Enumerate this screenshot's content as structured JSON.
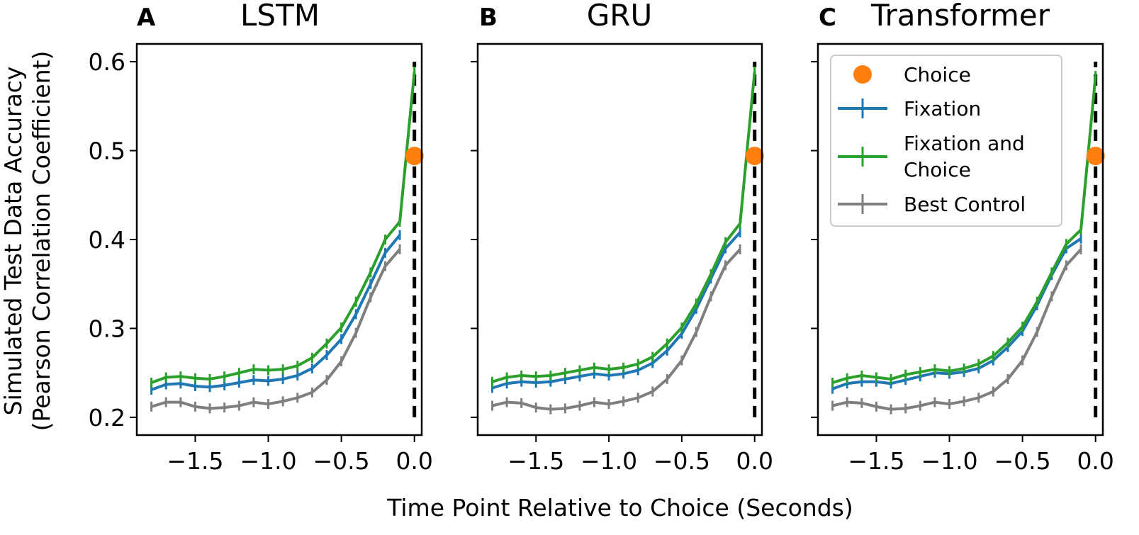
{
  "figure": {
    "xlabel": "Time Point Relative to Choice (Seconds)",
    "ylabel_line1": "Simulated Test Data Accuracy",
    "ylabel_line2": "(Pearson Correlation Coefficient)"
  },
  "colors": {
    "choice": "#ff7f0e",
    "fixation": "#1f77b4",
    "fixation_and_choice": "#2ca02c",
    "best_control": "#7f7f7f",
    "choice_line": "#000000"
  },
  "legend": {
    "choice": "Choice",
    "fixation": "Fixation",
    "fixation_and_choice_line1": "Fixation and",
    "fixation_and_choice_line2": "Choice",
    "best_control": "Best Control"
  },
  "chart_data": [
    {
      "type": "line",
      "panel": "A",
      "title": "LSTM",
      "xlim": [
        -1.9,
        0.05
      ],
      "ylim": [
        0.18,
        0.62
      ],
      "xticks": [
        -1.5,
        -1.0,
        -0.5,
        0.0
      ],
      "xtick_labels": [
        "−1.5",
        "−1.0",
        "−0.5",
        "0.0"
      ],
      "yticks": [
        0.2,
        0.3,
        0.4,
        0.5,
        0.6
      ],
      "ytick_labels": [
        "0.2",
        "0.3",
        "0.4",
        "0.5",
        "0.6"
      ],
      "x": [
        -1.8,
        -1.7,
        -1.6,
        -1.5,
        -1.4,
        -1.3,
        -1.2,
        -1.1,
        -1.0,
        -0.9,
        -0.8,
        -0.7,
        -0.6,
        -0.5,
        -0.4,
        -0.3,
        -0.2,
        -0.1,
        0.0
      ],
      "choice_point": {
        "x": 0.0,
        "y": 0.494
      },
      "series": [
        {
          "name": "Fixation",
          "key": "fixation",
          "values": [
            0.231,
            0.237,
            0.238,
            0.235,
            0.234,
            0.236,
            0.239,
            0.242,
            0.241,
            0.243,
            0.247,
            0.255,
            0.27,
            0.288,
            0.316,
            0.35,
            0.385,
            0.405,
            null
          ]
        },
        {
          "name": "Fixation and Choice",
          "key": "fixation_and_choice",
          "values": [
            0.239,
            0.245,
            0.246,
            0.244,
            0.243,
            0.246,
            0.25,
            0.254,
            0.253,
            0.254,
            0.258,
            0.267,
            0.283,
            0.301,
            0.33,
            0.363,
            0.4,
            0.42,
            0.589
          ]
        },
        {
          "name": "Best Control",
          "key": "best_control",
          "values": [
            0.212,
            0.217,
            0.217,
            0.212,
            0.21,
            0.211,
            0.213,
            0.217,
            0.215,
            0.218,
            0.222,
            0.228,
            0.242,
            0.263,
            0.295,
            0.335,
            0.37,
            0.389,
            null
          ]
        }
      ]
    },
    {
      "type": "line",
      "panel": "B",
      "title": "GRU",
      "xlim": [
        -1.9,
        0.05
      ],
      "ylim": [
        0.18,
        0.62
      ],
      "xticks": [
        -1.5,
        -1.0,
        -0.5,
        0.0
      ],
      "xtick_labels": [
        "−1.5",
        "−1.0",
        "−0.5",
        "0.0"
      ],
      "yticks": [
        0.2,
        0.3,
        0.4,
        0.5,
        0.6
      ],
      "ytick_labels": [
        "",
        "",
        "",
        "",
        ""
      ],
      "x": [
        -1.8,
        -1.7,
        -1.6,
        -1.5,
        -1.4,
        -1.3,
        -1.2,
        -1.1,
        -1.0,
        -0.9,
        -0.8,
        -0.7,
        -0.6,
        -0.5,
        -0.4,
        -0.3,
        -0.2,
        -0.1,
        0.0
      ],
      "choice_point": {
        "x": 0.0,
        "y": 0.494
      },
      "series": [
        {
          "name": "Fixation",
          "key": "fixation",
          "values": [
            0.233,
            0.238,
            0.24,
            0.239,
            0.24,
            0.243,
            0.246,
            0.249,
            0.247,
            0.249,
            0.253,
            0.261,
            0.275,
            0.294,
            0.322,
            0.356,
            0.39,
            0.408,
            null
          ]
        },
        {
          "name": "Fixation and Choice",
          "key": "fixation_and_choice",
          "values": [
            0.24,
            0.245,
            0.247,
            0.246,
            0.247,
            0.25,
            0.253,
            0.256,
            0.254,
            0.256,
            0.26,
            0.268,
            0.283,
            0.301,
            0.328,
            0.361,
            0.397,
            0.418,
            0.589
          ]
        },
        {
          "name": "Best Control",
          "key": "best_control",
          "values": [
            0.213,
            0.217,
            0.216,
            0.211,
            0.209,
            0.21,
            0.213,
            0.217,
            0.215,
            0.218,
            0.222,
            0.229,
            0.243,
            0.264,
            0.296,
            0.336,
            0.371,
            0.389,
            null
          ]
        }
      ]
    },
    {
      "type": "line",
      "panel": "C",
      "title": "Transformer",
      "xlim": [
        -1.9,
        0.05
      ],
      "ylim": [
        0.18,
        0.62
      ],
      "xticks": [
        -1.5,
        -1.0,
        -0.5,
        0.0
      ],
      "xtick_labels": [
        "−1.5",
        "−1.0",
        "−0.5",
        "0.0"
      ],
      "yticks": [
        0.2,
        0.3,
        0.4,
        0.5,
        0.6
      ],
      "ytick_labels": [
        "",
        "",
        "",
        "",
        ""
      ],
      "x": [
        -1.8,
        -1.7,
        -1.6,
        -1.5,
        -1.4,
        -1.3,
        -1.2,
        -1.1,
        -1.0,
        -0.9,
        -0.8,
        -0.7,
        -0.6,
        -0.5,
        -0.4,
        -0.3,
        -0.2,
        -0.1,
        0.0
      ],
      "choice_point": {
        "x": 0.0,
        "y": 0.494
      },
      "series": [
        {
          "name": "Fixation",
          "key": "fixation",
          "values": [
            0.232,
            0.238,
            0.24,
            0.24,
            0.238,
            0.242,
            0.246,
            0.25,
            0.249,
            0.251,
            0.255,
            0.264,
            0.279,
            0.297,
            0.326,
            0.36,
            0.39,
            0.401,
            null
          ]
        },
        {
          "name": "Fixation and Choice",
          "key": "fixation_and_choice",
          "values": [
            0.239,
            0.244,
            0.247,
            0.245,
            0.243,
            0.248,
            0.251,
            0.254,
            0.252,
            0.255,
            0.26,
            0.269,
            0.284,
            0.302,
            0.33,
            0.363,
            0.395,
            0.411,
            0.584
          ]
        },
        {
          "name": "Best Control",
          "key": "best_control",
          "values": [
            0.213,
            0.217,
            0.216,
            0.212,
            0.209,
            0.21,
            0.213,
            0.217,
            0.215,
            0.218,
            0.222,
            0.229,
            0.243,
            0.264,
            0.296,
            0.336,
            0.371,
            0.389,
            null
          ]
        }
      ]
    }
  ]
}
